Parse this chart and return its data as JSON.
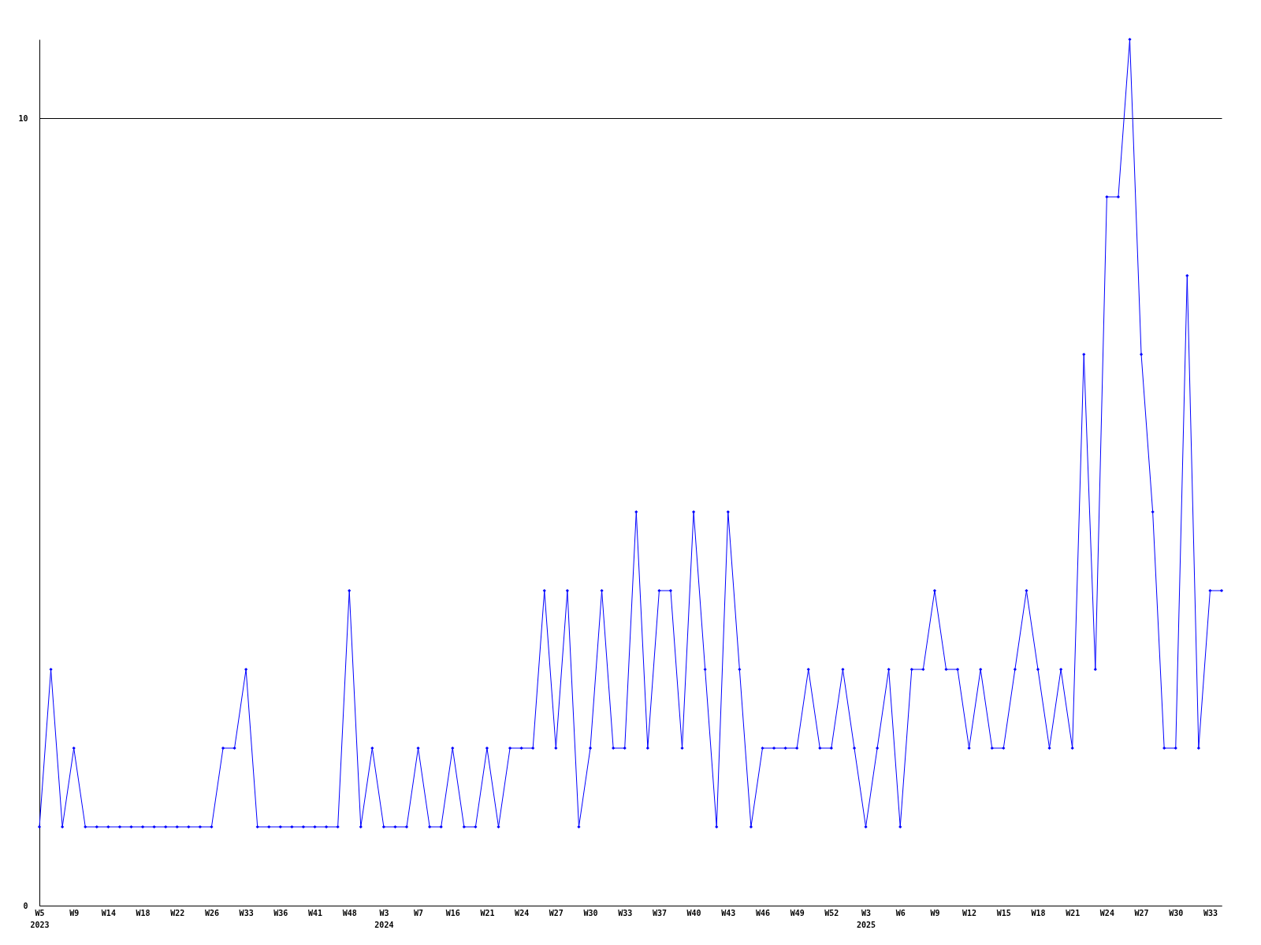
{
  "chart_data": {
    "type": "line",
    "categories": [
      "W5\n2023",
      null,
      null,
      "W9",
      null,
      null,
      "W14",
      null,
      null,
      "W18",
      null,
      null,
      "W22",
      null,
      null,
      "W26",
      null,
      null,
      "W33",
      null,
      null,
      "W36",
      null,
      null,
      "W41",
      null,
      null,
      "W48",
      null,
      null,
      "W3\n2024",
      null,
      null,
      "W7",
      null,
      null,
      "W16",
      null,
      null,
      "W21",
      null,
      null,
      "W24",
      null,
      null,
      "W27",
      null,
      null,
      "W30",
      null,
      null,
      "W33",
      null,
      null,
      "W37",
      null,
      null,
      "W40",
      null,
      null,
      "W43",
      null,
      null,
      "W46",
      null,
      null,
      "W49",
      null,
      null,
      "W52",
      null,
      null,
      "W3\n2025",
      null,
      null,
      "W6",
      null,
      null,
      "W9",
      null,
      null,
      "W12",
      null,
      null,
      "W15",
      null,
      null,
      "W18",
      null,
      null,
      "W21",
      null,
      null,
      "W24",
      null,
      null,
      "W27",
      null,
      null,
      "W30",
      null,
      null,
      "W33",
      null
    ],
    "series": [
      {
        "color": "#0000ff",
        "values": [
          1,
          3,
          1,
          2,
          1,
          1,
          1,
          1,
          1,
          1,
          1,
          1,
          1,
          1,
          1,
          1,
          2,
          2,
          3,
          1,
          1,
          1,
          1,
          1,
          1,
          1,
          1,
          4,
          1,
          2,
          1,
          1,
          1,
          2,
          1,
          1,
          2,
          1,
          1,
          2,
          1,
          2,
          2,
          2,
          4,
          2,
          4,
          1,
          2,
          4,
          2,
          2,
          5,
          2,
          4,
          4,
          2,
          5,
          3,
          1,
          5,
          3,
          1,
          2,
          2,
          2,
          2,
          3,
          2,
          2,
          3,
          2,
          1,
          2,
          3,
          1,
          3,
          3,
          4,
          3,
          3,
          2,
          3,
          2,
          2,
          3,
          4,
          3,
          2,
          3,
          2,
          7,
          3,
          9,
          9,
          11,
          7,
          5,
          2,
          2,
          8,
          2,
          4,
          4
        ]
      }
    ],
    "ylim": [
      0,
      11
    ],
    "yticks": [
      0,
      10
    ],
    "grid": "y",
    "marker": "diamond",
    "line_style": "solid"
  }
}
